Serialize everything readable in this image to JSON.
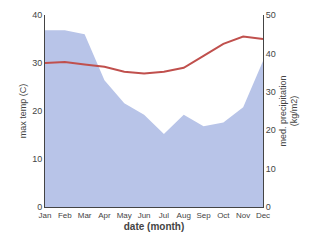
{
  "chart_data": {
    "type": "line",
    "xlabel": "date (month)",
    "ylabel": "max temp (C)",
    "y2label": "med. precipitation\n(kg/m2)",
    "categories": [
      "Jan",
      "Feb",
      "Mar",
      "Apr",
      "May",
      "Jun",
      "Jul",
      "Aug",
      "Sep",
      "Oct",
      "Nov",
      "Dec"
    ],
    "series": [
      {
        "type": "area",
        "axis": "y2",
        "color": "#b8c4e8",
        "values": [
          46.0,
          46.0,
          45.0,
          33.0,
          27.0,
          24.0,
          19.0,
          24.0,
          21.0,
          22.0,
          26.0,
          38.0
        ]
      },
      {
        "type": "line",
        "color": "#c0504d",
        "values": [
          30.0,
          30.2,
          29.7,
          29.2,
          28.2,
          27.8,
          28.2,
          29.0,
          31.5,
          34.0,
          35.5,
          35.0
        ]
      }
    ],
    "ylim": [
      0,
      40
    ],
    "yticks": [
      0,
      10,
      20,
      30,
      40
    ],
    "y2lim": [
      0,
      50
    ],
    "y2ticks": [
      0,
      10,
      20,
      30,
      40,
      50
    ],
    "grid": false
  }
}
